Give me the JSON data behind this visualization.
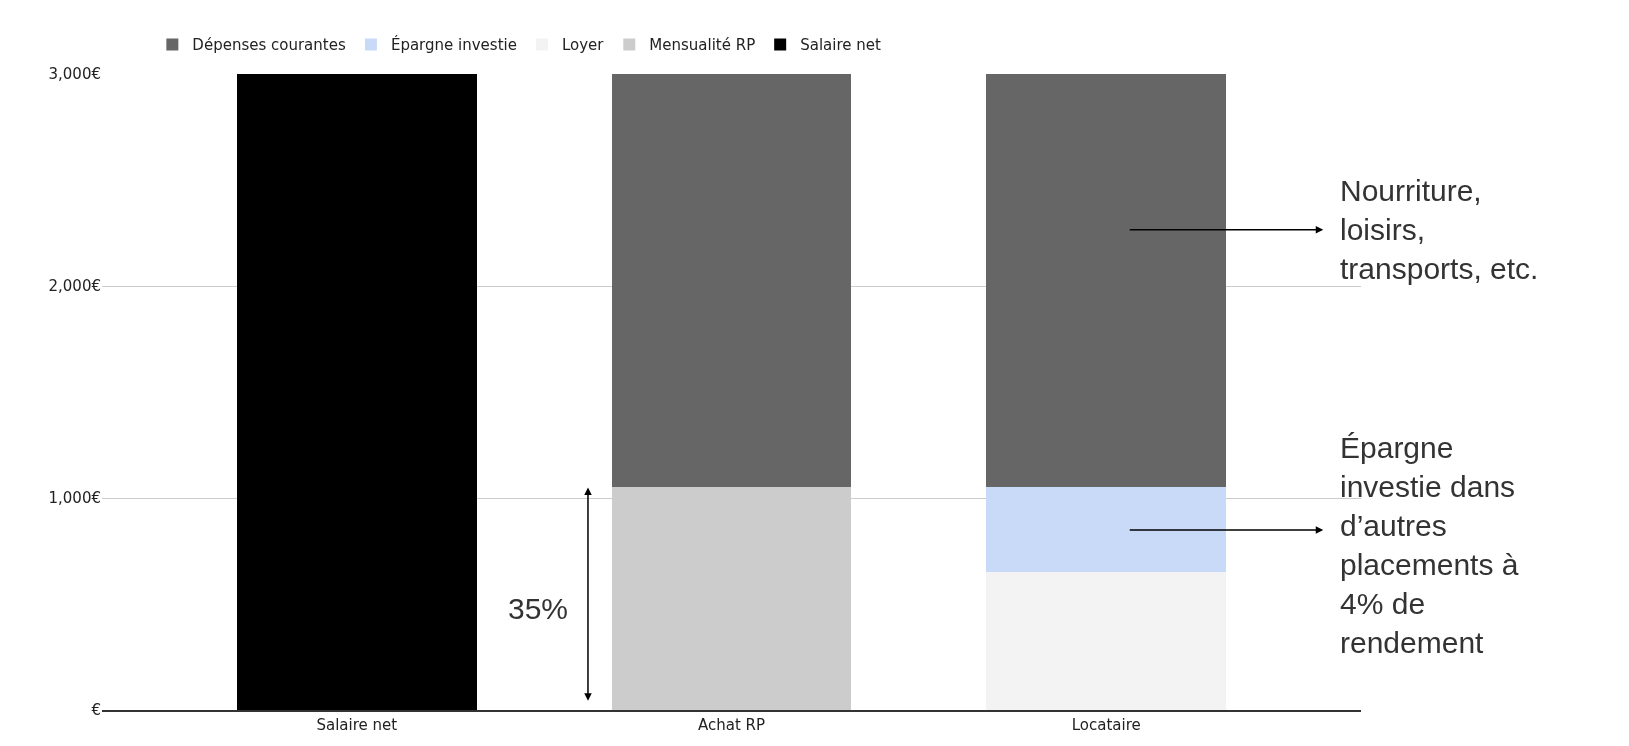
{
  "chart_data": {
    "type": "bar",
    "stacked": true,
    "categories": [
      "Salaire net",
      "Achat RP",
      "Locataire"
    ],
    "series": [
      {
        "name": "Salaire net",
        "color": "#000000",
        "values": [
          3000,
          null,
          null
        ]
      },
      {
        "name": "Mensualité RP",
        "color": "#cccccc",
        "values": [
          null,
          1050,
          null
        ]
      },
      {
        "name": "Loyer",
        "color": "#f3f3f3",
        "values": [
          null,
          null,
          650
        ]
      },
      {
        "name": "Épargne investie",
        "color": "#c9daf8",
        "values": [
          null,
          null,
          400
        ]
      },
      {
        "name": "Dépenses courantes",
        "color": "#666666",
        "values": [
          null,
          1950,
          1950
        ]
      }
    ],
    "ylim": [
      0,
      3000
    ],
    "yticks": [
      {
        "value": 0,
        "label": "€"
      },
      {
        "value": 1000,
        "label": "1,000€"
      },
      {
        "value": 2000,
        "label": "2,000€"
      },
      {
        "value": 3000,
        "label": "3,000€"
      }
    ],
    "grid": "y",
    "legend": "top left",
    "annotations": [
      "35%",
      "Nourriture,\nloisirs,\ntransports, etc.",
      "Épargne\ninvestie dans\nd’autres\nplacements à\n4% de\nrendement"
    ]
  }
}
